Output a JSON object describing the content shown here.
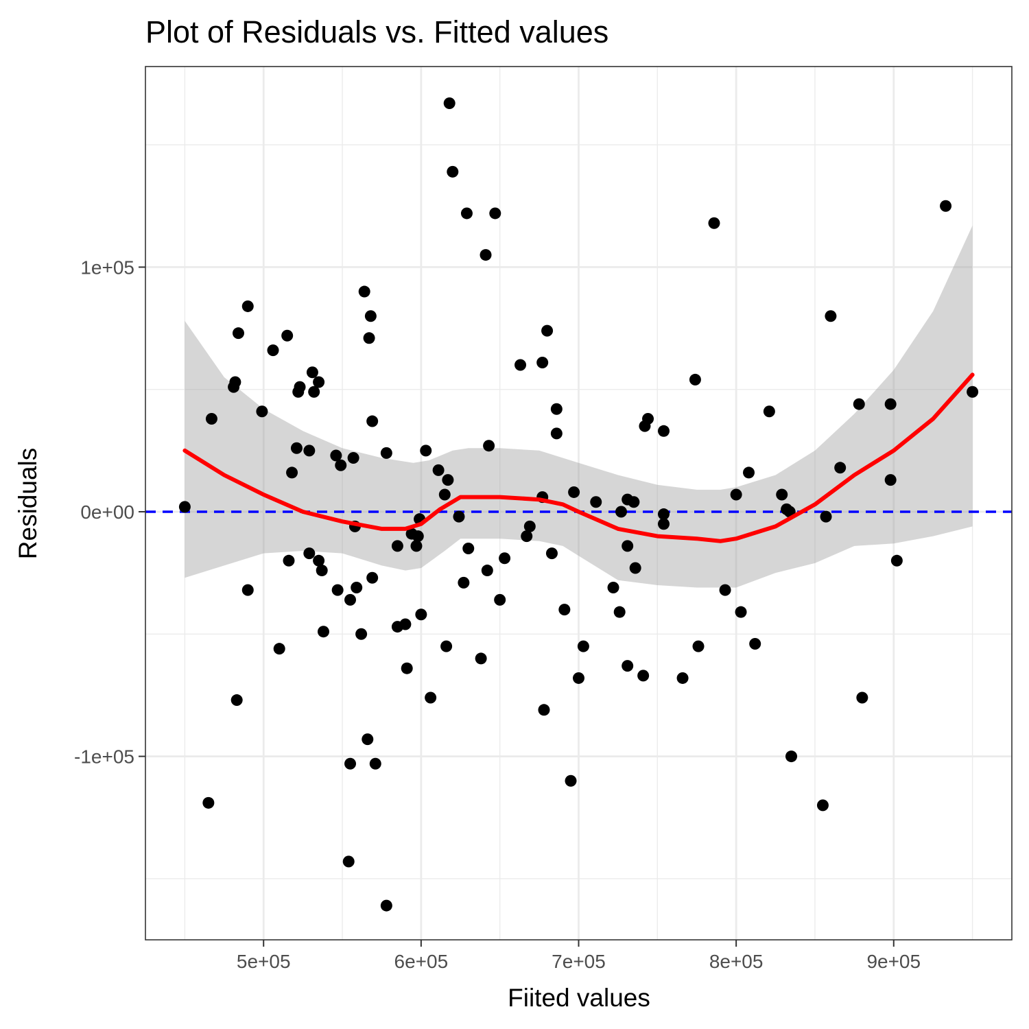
{
  "chart_data": {
    "type": "scatter",
    "title": "Plot of Residuals vs. Fitted values",
    "xlabel": "Fiited values",
    "ylabel": "Residuals",
    "xlim": [
      425000,
      975000
    ],
    "ylim": [
      -175000,
      182000
    ],
    "x_ticks": [
      500000,
      600000,
      700000,
      800000,
      900000
    ],
    "x_tick_labels": [
      "5e+05",
      "6e+05",
      "7e+05",
      "8e+05",
      "9e+05"
    ],
    "y_ticks": [
      -100000,
      0,
      100000
    ],
    "y_tick_labels": [
      "-1e+05",
      "0e+00",
      "1e+05"
    ],
    "grid": true,
    "reference_line": {
      "y": 0,
      "color": "#0000ff",
      "style": "dashed"
    },
    "colors": {
      "points": "#000000",
      "smooth": "#ff0000",
      "band": "#999999",
      "reference": "#0000ff",
      "panel_border": "#333333",
      "grid": "#ebebeb"
    },
    "points": [
      {
        "x": 450000,
        "y": 2000
      },
      {
        "x": 465000,
        "y": -119000
      },
      {
        "x": 467000,
        "y": 38000
      },
      {
        "x": 481000,
        "y": 51000
      },
      {
        "x": 482000,
        "y": 53000
      },
      {
        "x": 484000,
        "y": 73000
      },
      {
        "x": 483000,
        "y": -77000
      },
      {
        "x": 490000,
        "y": 84000
      },
      {
        "x": 490000,
        "y": -32000
      },
      {
        "x": 499000,
        "y": 41000
      },
      {
        "x": 506000,
        "y": 66000
      },
      {
        "x": 510000,
        "y": -56000
      },
      {
        "x": 515000,
        "y": 72000
      },
      {
        "x": 516000,
        "y": -20000
      },
      {
        "x": 518000,
        "y": 16000
      },
      {
        "x": 521000,
        "y": 26000
      },
      {
        "x": 522000,
        "y": 49000
      },
      {
        "x": 523000,
        "y": 51000
      },
      {
        "x": 529000,
        "y": 25000
      },
      {
        "x": 529000,
        "y": -17000
      },
      {
        "x": 531000,
        "y": 57000
      },
      {
        "x": 532000,
        "y": 49000
      },
      {
        "x": 535000,
        "y": 53000
      },
      {
        "x": 535000,
        "y": -20000
      },
      {
        "x": 537000,
        "y": -24000
      },
      {
        "x": 538000,
        "y": -49000
      },
      {
        "x": 546000,
        "y": 23000
      },
      {
        "x": 547000,
        "y": -32000
      },
      {
        "x": 549000,
        "y": 19000
      },
      {
        "x": 555000,
        "y": -36000
      },
      {
        "x": 555000,
        "y": -103000
      },
      {
        "x": 554000,
        "y": -143000
      },
      {
        "x": 557000,
        "y": 22000
      },
      {
        "x": 558000,
        "y": -6000
      },
      {
        "x": 559000,
        "y": -31000
      },
      {
        "x": 562000,
        "y": -50000
      },
      {
        "x": 564000,
        "y": 90000
      },
      {
        "x": 566000,
        "y": -93000
      },
      {
        "x": 567000,
        "y": 71000
      },
      {
        "x": 568000,
        "y": 80000
      },
      {
        "x": 569000,
        "y": 37000
      },
      {
        "x": 569000,
        "y": -27000
      },
      {
        "x": 571000,
        "y": -103000
      },
      {
        "x": 578000,
        "y": 24000
      },
      {
        "x": 578000,
        "y": -161000
      },
      {
        "x": 585000,
        "y": -14000
      },
      {
        "x": 585000,
        "y": -47000
      },
      {
        "x": 590000,
        "y": -46000
      },
      {
        "x": 591000,
        "y": -64000
      },
      {
        "x": 594000,
        "y": -9000
      },
      {
        "x": 597000,
        "y": -14000
      },
      {
        "x": 598000,
        "y": -10000
      },
      {
        "x": 599000,
        "y": -3000
      },
      {
        "x": 600000,
        "y": -42000
      },
      {
        "x": 603000,
        "y": 25000
      },
      {
        "x": 606000,
        "y": -76000
      },
      {
        "x": 611000,
        "y": 17000
      },
      {
        "x": 615000,
        "y": 7000
      },
      {
        "x": 616000,
        "y": -55000
      },
      {
        "x": 617000,
        "y": 13000
      },
      {
        "x": 618000,
        "y": 167000
      },
      {
        "x": 620000,
        "y": 139000
      },
      {
        "x": 624000,
        "y": -2000
      },
      {
        "x": 627000,
        "y": -29000
      },
      {
        "x": 629000,
        "y": 122000
      },
      {
        "x": 630000,
        "y": -15000
      },
      {
        "x": 638000,
        "y": -60000
      },
      {
        "x": 641000,
        "y": 105000
      },
      {
        "x": 642000,
        "y": -24000
      },
      {
        "x": 643000,
        "y": 27000
      },
      {
        "x": 647000,
        "y": 122000
      },
      {
        "x": 650000,
        "y": -36000
      },
      {
        "x": 653000,
        "y": -19000
      },
      {
        "x": 663000,
        "y": 60000
      },
      {
        "x": 667000,
        "y": -10000
      },
      {
        "x": 669000,
        "y": -6000
      },
      {
        "x": 677000,
        "y": 61000
      },
      {
        "x": 677000,
        "y": 6000
      },
      {
        "x": 678000,
        "y": -81000
      },
      {
        "x": 680000,
        "y": 74000
      },
      {
        "x": 683000,
        "y": -17000
      },
      {
        "x": 686000,
        "y": 42000
      },
      {
        "x": 686000,
        "y": 32000
      },
      {
        "x": 691000,
        "y": -40000
      },
      {
        "x": 695000,
        "y": -110000
      },
      {
        "x": 697000,
        "y": 8000
      },
      {
        "x": 700000,
        "y": -68000
      },
      {
        "x": 703000,
        "y": -55000
      },
      {
        "x": 711000,
        "y": 4000
      },
      {
        "x": 722000,
        "y": -31000
      },
      {
        "x": 726000,
        "y": -41000
      },
      {
        "x": 727000,
        "y": 0
      },
      {
        "x": 731000,
        "y": 5000
      },
      {
        "x": 731000,
        "y": -14000
      },
      {
        "x": 731000,
        "y": -63000
      },
      {
        "x": 735000,
        "y": 4000
      },
      {
        "x": 736000,
        "y": -23000
      },
      {
        "x": 741000,
        "y": -67000
      },
      {
        "x": 742000,
        "y": 35000
      },
      {
        "x": 744000,
        "y": 38000
      },
      {
        "x": 754000,
        "y": 33000
      },
      {
        "x": 754000,
        "y": -1000
      },
      {
        "x": 754000,
        "y": -5000
      },
      {
        "x": 766000,
        "y": -68000
      },
      {
        "x": 774000,
        "y": 54000
      },
      {
        "x": 776000,
        "y": -55000
      },
      {
        "x": 786000,
        "y": 118000
      },
      {
        "x": 793000,
        "y": -32000
      },
      {
        "x": 800000,
        "y": 7000
      },
      {
        "x": 803000,
        "y": -41000
      },
      {
        "x": 808000,
        "y": 16000
      },
      {
        "x": 812000,
        "y": -54000
      },
      {
        "x": 821000,
        "y": 41000
      },
      {
        "x": 829000,
        "y": 7000
      },
      {
        "x": 832000,
        "y": 1000
      },
      {
        "x": 834000,
        "y": 0
      },
      {
        "x": 835000,
        "y": -100000
      },
      {
        "x": 855000,
        "y": -120000
      },
      {
        "x": 857000,
        "y": -2000
      },
      {
        "x": 860000,
        "y": 80000
      },
      {
        "x": 866000,
        "y": 18000
      },
      {
        "x": 878000,
        "y": 44000
      },
      {
        "x": 880000,
        "y": -76000
      },
      {
        "x": 898000,
        "y": 44000
      },
      {
        "x": 898000,
        "y": 13000
      },
      {
        "x": 902000,
        "y": -20000
      },
      {
        "x": 933000,
        "y": 125000
      },
      {
        "x": 950000,
        "y": 49000
      }
    ],
    "smooth_line": [
      [
        450000,
        25000
      ],
      [
        475000,
        15000
      ],
      [
        500000,
        7000
      ],
      [
        525000,
        0
      ],
      [
        550000,
        -4000
      ],
      [
        575000,
        -7000
      ],
      [
        590000,
        -7000
      ],
      [
        600000,
        -5000
      ],
      [
        612000,
        1000
      ],
      [
        625000,
        6000
      ],
      [
        650000,
        6000
      ],
      [
        675000,
        5000
      ],
      [
        690000,
        3000
      ],
      [
        700000,
        0
      ],
      [
        725000,
        -7000
      ],
      [
        750000,
        -10000
      ],
      [
        775000,
        -11000
      ],
      [
        790000,
        -12000
      ],
      [
        800000,
        -11000
      ],
      [
        825000,
        -6000
      ],
      [
        850000,
        3000
      ],
      [
        875000,
        15000
      ],
      [
        900000,
        25000
      ],
      [
        925000,
        38000
      ],
      [
        950000,
        56000
      ]
    ],
    "confidence_band_upper": [
      [
        450000,
        78000
      ],
      [
        475000,
        55000
      ],
      [
        500000,
        42000
      ],
      [
        525000,
        33000
      ],
      [
        550000,
        26000
      ],
      [
        575000,
        22000
      ],
      [
        595000,
        20000
      ],
      [
        605000,
        21000
      ],
      [
        620000,
        25000
      ],
      [
        630000,
        26000
      ],
      [
        650000,
        26000
      ],
      [
        675000,
        25000
      ],
      [
        700000,
        20000
      ],
      [
        725000,
        15000
      ],
      [
        750000,
        11000
      ],
      [
        775000,
        9000
      ],
      [
        790000,
        9000
      ],
      [
        800000,
        10000
      ],
      [
        825000,
        15000
      ],
      [
        850000,
        25000
      ],
      [
        875000,
        40000
      ],
      [
        900000,
        58000
      ],
      [
        925000,
        82000
      ],
      [
        950000,
        117000
      ]
    ],
    "confidence_band_lower": [
      [
        450000,
        -27000
      ],
      [
        475000,
        -22000
      ],
      [
        500000,
        -17000
      ],
      [
        525000,
        -16000
      ],
      [
        550000,
        -17000
      ],
      [
        575000,
        -22000
      ],
      [
        590000,
        -24000
      ],
      [
        600000,
        -23000
      ],
      [
        615000,
        -16000
      ],
      [
        625000,
        -11000
      ],
      [
        650000,
        -11000
      ],
      [
        675000,
        -12000
      ],
      [
        690000,
        -14000
      ],
      [
        700000,
        -18000
      ],
      [
        725000,
        -28000
      ],
      [
        750000,
        -30000
      ],
      [
        775000,
        -31000
      ],
      [
        790000,
        -31000
      ],
      [
        800000,
        -31000
      ],
      [
        825000,
        -25000
      ],
      [
        850000,
        -21000
      ],
      [
        875000,
        -14000
      ],
      [
        900000,
        -13000
      ],
      [
        925000,
        -10000
      ],
      [
        950000,
        -6000
      ]
    ]
  }
}
